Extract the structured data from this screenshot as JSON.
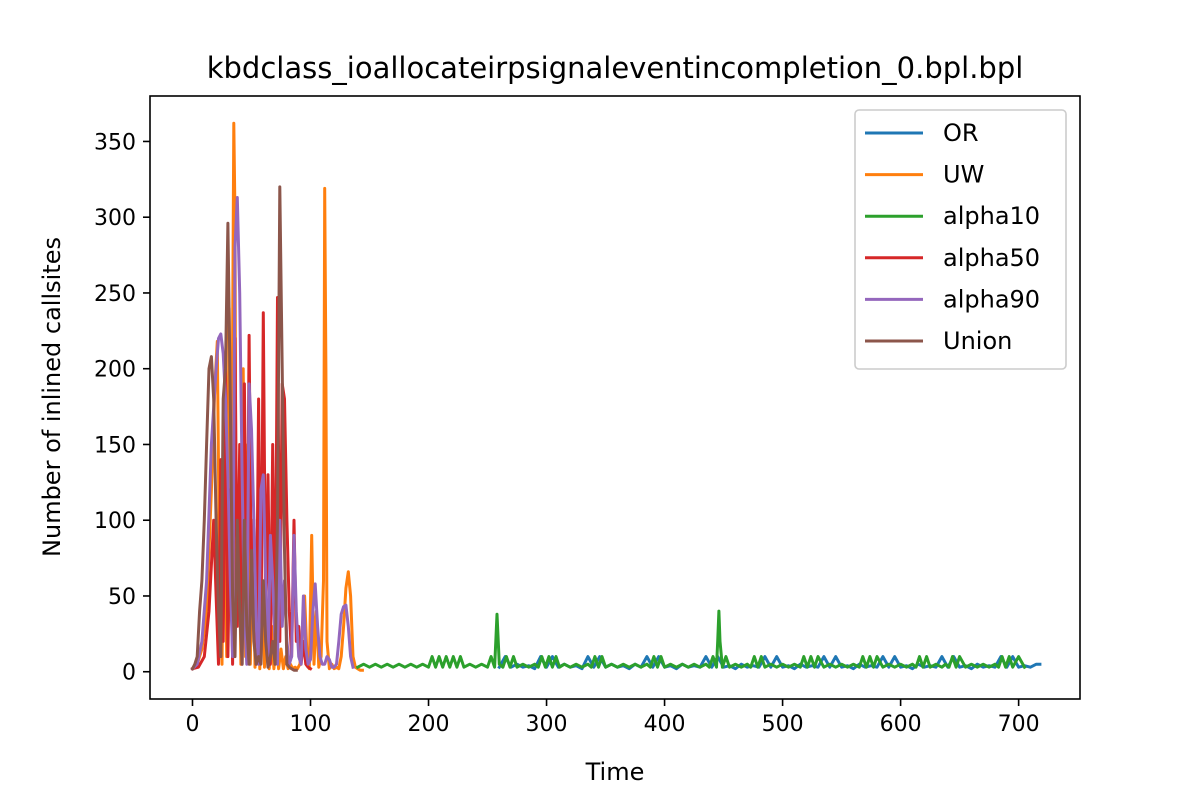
{
  "chart_data": {
    "type": "line",
    "title": "kbdclass_ioallocateirpsignaleventincompletion_0.bpl.bpl",
    "xlabel": "Time",
    "ylabel": "Number of inlined callsites",
    "xlim": [
      -36,
      752
    ],
    "ylim": [
      -18,
      380
    ],
    "xticks": [
      0,
      100,
      200,
      300,
      400,
      500,
      600,
      700
    ],
    "yticks": [
      0,
      50,
      100,
      150,
      200,
      250,
      300,
      350
    ],
    "grid": false,
    "legend_position": "top-right",
    "series": [
      {
        "name": "OR",
        "color": "#1f77b4",
        "x": [
          260,
          265,
          270,
          275,
          280,
          285,
          290,
          295,
          300,
          305,
          310,
          315,
          320,
          325,
          330,
          335,
          340,
          345,
          350,
          355,
          360,
          365,
          370,
          375,
          380,
          385,
          390,
          395,
          400,
          405,
          410,
          415,
          420,
          425,
          430,
          435,
          440,
          445,
          450,
          455,
          460,
          465,
          470,
          475,
          480,
          485,
          490,
          495,
          500,
          505,
          510,
          515,
          520,
          525,
          530,
          535,
          540,
          545,
          550,
          555,
          560,
          565,
          570,
          575,
          580,
          585,
          590,
          595,
          600,
          605,
          610,
          615,
          620,
          625,
          630,
          635,
          640,
          645,
          650,
          655,
          660,
          665,
          670,
          675,
          680,
          685,
          690,
          695,
          700,
          705,
          710,
          715,
          718
        ],
        "y": [
          3,
          10,
          3,
          5,
          3,
          4,
          2,
          10,
          3,
          10,
          3,
          5,
          3,
          4,
          2,
          10,
          3,
          10,
          3,
          5,
          3,
          4,
          2,
          5,
          3,
          10,
          3,
          10,
          3,
          4,
          2,
          5,
          3,
          4,
          3,
          10,
          3,
          10,
          3,
          4,
          2,
          5,
          3,
          4,
          3,
          10,
          3,
          10,
          3,
          4,
          2,
          5,
          3,
          4,
          3,
          10,
          3,
          10,
          3,
          4,
          2,
          5,
          3,
          4,
          3,
          10,
          3,
          10,
          3,
          4,
          2,
          5,
          3,
          4,
          3,
          10,
          3,
          10,
          3,
          4,
          2,
          5,
          3,
          4,
          3,
          10,
          3,
          10,
          3,
          4,
          3,
          5,
          5
        ]
      },
      {
        "name": "UW",
        "color": "#ff7f0e",
        "x": [
          0,
          4,
          8,
          12,
          16,
          19,
          21,
          23,
          25,
          27,
          29,
          31,
          33,
          35,
          36,
          37,
          39,
          41,
          43,
          45,
          47,
          49,
          51,
          53,
          55,
          57,
          59,
          61,
          63,
          65,
          67,
          69,
          71,
          73,
          75,
          77,
          79,
          81,
          83,
          85,
          87,
          89,
          91,
          93,
          95,
          97,
          99,
          101,
          103,
          105,
          107,
          109,
          111,
          112,
          113,
          114,
          116,
          118,
          120,
          122,
          124,
          126,
          128,
          130,
          132,
          134,
          136,
          138,
          140,
          142,
          144
        ],
        "y": [
          2,
          5,
          15,
          40,
          120,
          190,
          218,
          60,
          5,
          150,
          10,
          240,
          80,
          362,
          300,
          30,
          120,
          5,
          200,
          10,
          150,
          5,
          100,
          3,
          80,
          2,
          60,
          3,
          40,
          2,
          30,
          2,
          20,
          2,
          15,
          2,
          10,
          2,
          5,
          2,
          3,
          2,
          5,
          20,
          50,
          10,
          2,
          90,
          5,
          40,
          3,
          10,
          60,
          319,
          200,
          20,
          2,
          5,
          2,
          3,
          2,
          10,
          30,
          55,
          66,
          50,
          10,
          3,
          2,
          1,
          1
        ]
      },
      {
        "name": "alpha10",
        "color": "#2ca02c",
        "x": [
          140,
          145,
          150,
          155,
          160,
          165,
          170,
          175,
          180,
          185,
          190,
          195,
          200,
          203,
          206,
          209,
          212,
          215,
          218,
          221,
          224,
          227,
          230,
          235,
          240,
          245,
          250,
          253,
          256,
          257,
          258,
          260,
          263,
          266,
          269,
          272,
          275,
          280,
          285,
          290,
          293,
          296,
          299,
          302,
          305,
          308,
          311,
          315,
          320,
          325,
          330,
          335,
          338,
          341,
          344,
          347,
          350,
          355,
          360,
          365,
          370,
          375,
          380,
          385,
          388,
          391,
          394,
          397,
          400,
          405,
          410,
          415,
          420,
          425,
          430,
          435,
          438,
          441,
          444,
          445,
          446,
          447,
          449,
          452,
          455,
          460,
          465,
          470,
          473,
          476,
          479,
          482,
          485,
          490,
          495,
          500,
          505,
          510,
          515,
          518,
          521,
          524,
          527,
          530,
          535,
          540,
          545,
          550,
          555,
          560,
          565,
          568,
          571,
          574,
          577,
          580,
          585,
          590,
          595,
          600,
          605,
          610,
          613,
          616,
          619,
          622,
          625,
          630,
          635,
          638,
          641,
          644,
          647,
          650,
          655,
          660,
          665,
          670,
          675,
          680,
          683,
          686,
          689,
          692,
          695,
          700,
          705
        ],
        "y": [
          3,
          5,
          3,
          5,
          3,
          5,
          3,
          5,
          3,
          5,
          3,
          5,
          3,
          10,
          3,
          10,
          3,
          10,
          3,
          10,
          3,
          10,
          3,
          5,
          3,
          5,
          3,
          10,
          3,
          20,
          38,
          5,
          3,
          10,
          3,
          10,
          3,
          5,
          3,
          5,
          3,
          10,
          3,
          10,
          3,
          10,
          3,
          5,
          3,
          5,
          3,
          5,
          3,
          10,
          3,
          10,
          3,
          5,
          3,
          5,
          3,
          5,
          3,
          5,
          3,
          10,
          3,
          10,
          3,
          5,
          3,
          5,
          3,
          5,
          3,
          5,
          3,
          10,
          3,
          20,
          40,
          20,
          3,
          10,
          3,
          5,
          3,
          5,
          3,
          10,
          3,
          10,
          3,
          5,
          3,
          5,
          3,
          5,
          3,
          10,
          3,
          10,
          3,
          10,
          3,
          5,
          3,
          5,
          3,
          5,
          3,
          10,
          3,
          10,
          3,
          10,
          3,
          5,
          3,
          5,
          3,
          5,
          3,
          10,
          3,
          10,
          3,
          5,
          3,
          5,
          3,
          10,
          3,
          10,
          3,
          5,
          3,
          5,
          3,
          5,
          3,
          10,
          3,
          10,
          3,
          10,
          3
        ]
      },
      {
        "name": "alpha50",
        "color": "#d62728",
        "x": [
          0,
          5,
          10,
          14,
          18,
          20,
          22,
          24,
          26,
          28,
          30,
          32,
          34,
          36,
          38,
          40,
          42,
          44,
          46,
          48,
          50,
          52,
          54,
          56,
          58,
          60,
          62,
          64,
          66,
          68,
          70,
          72,
          74,
          76,
          78,
          80,
          82,
          84,
          86,
          88,
          90,
          92,
          94,
          96,
          98,
          100
        ],
        "y": [
          2,
          3,
          10,
          40,
          100,
          50,
          5,
          140,
          20,
          200,
          10,
          120,
          5,
          220,
          30,
          150,
          5,
          190,
          10,
          222,
          40,
          100,
          5,
          180,
          10,
          237,
          30,
          130,
          5,
          150,
          10,
          247,
          20,
          190,
          180,
          100,
          40,
          10,
          100,
          20,
          30,
          5,
          20,
          5,
          3,
          2
        ]
      },
      {
        "name": "alpha90",
        "color": "#9467bd",
        "x": [
          0,
          4,
          8,
          12,
          16,
          20,
          22,
          24,
          26,
          28,
          30,
          32,
          34,
          36,
          38,
          40,
          42,
          44,
          46,
          48,
          50,
          52,
          54,
          56,
          58,
          60,
          62,
          64,
          66,
          68,
          70,
          72,
          74,
          76,
          78,
          80,
          82,
          84,
          86,
          88,
          90,
          92,
          94,
          96,
          98,
          100,
          102,
          104,
          106,
          108,
          110,
          112,
          114,
          116,
          118,
          120,
          122,
          124,
          126,
          128,
          130,
          132,
          134,
          136
        ],
        "y": [
          2,
          5,
          20,
          60,
          150,
          200,
          220,
          223,
          210,
          180,
          130,
          60,
          10,
          280,
          313,
          250,
          130,
          40,
          5,
          190,
          160,
          100,
          30,
          5,
          120,
          130,
          60,
          5,
          90,
          60,
          20,
          5,
          100,
          30,
          60,
          20,
          5,
          10,
          90,
          40,
          10,
          5,
          50,
          15,
          5,
          8,
          40,
          58,
          30,
          10,
          5,
          5,
          10,
          8,
          3,
          3,
          5,
          20,
          38,
          43,
          44,
          30,
          10,
          3
        ]
      },
      {
        "name": "Union",
        "color": "#8c564b",
        "x": [
          0,
          2,
          4,
          6,
          8,
          10,
          12,
          14,
          16,
          18,
          20,
          22,
          24,
          26,
          28,
          30,
          32,
          34,
          36,
          38,
          40,
          42,
          44,
          46,
          48,
          50,
          52,
          54,
          56,
          58,
          60,
          62,
          64,
          66,
          68,
          70,
          72,
          74,
          76,
          78,
          80,
          82,
          84,
          86,
          88
        ],
        "y": [
          2,
          5,
          10,
          40,
          60,
          100,
          150,
          200,
          208,
          180,
          100,
          40,
          10,
          180,
          200,
          296,
          180,
          50,
          10,
          100,
          40,
          5,
          100,
          30,
          5,
          80,
          20,
          5,
          10,
          5,
          60,
          20,
          3,
          10,
          20,
          5,
          100,
          320,
          200,
          80,
          5,
          3,
          2,
          1,
          1
        ]
      }
    ]
  }
}
